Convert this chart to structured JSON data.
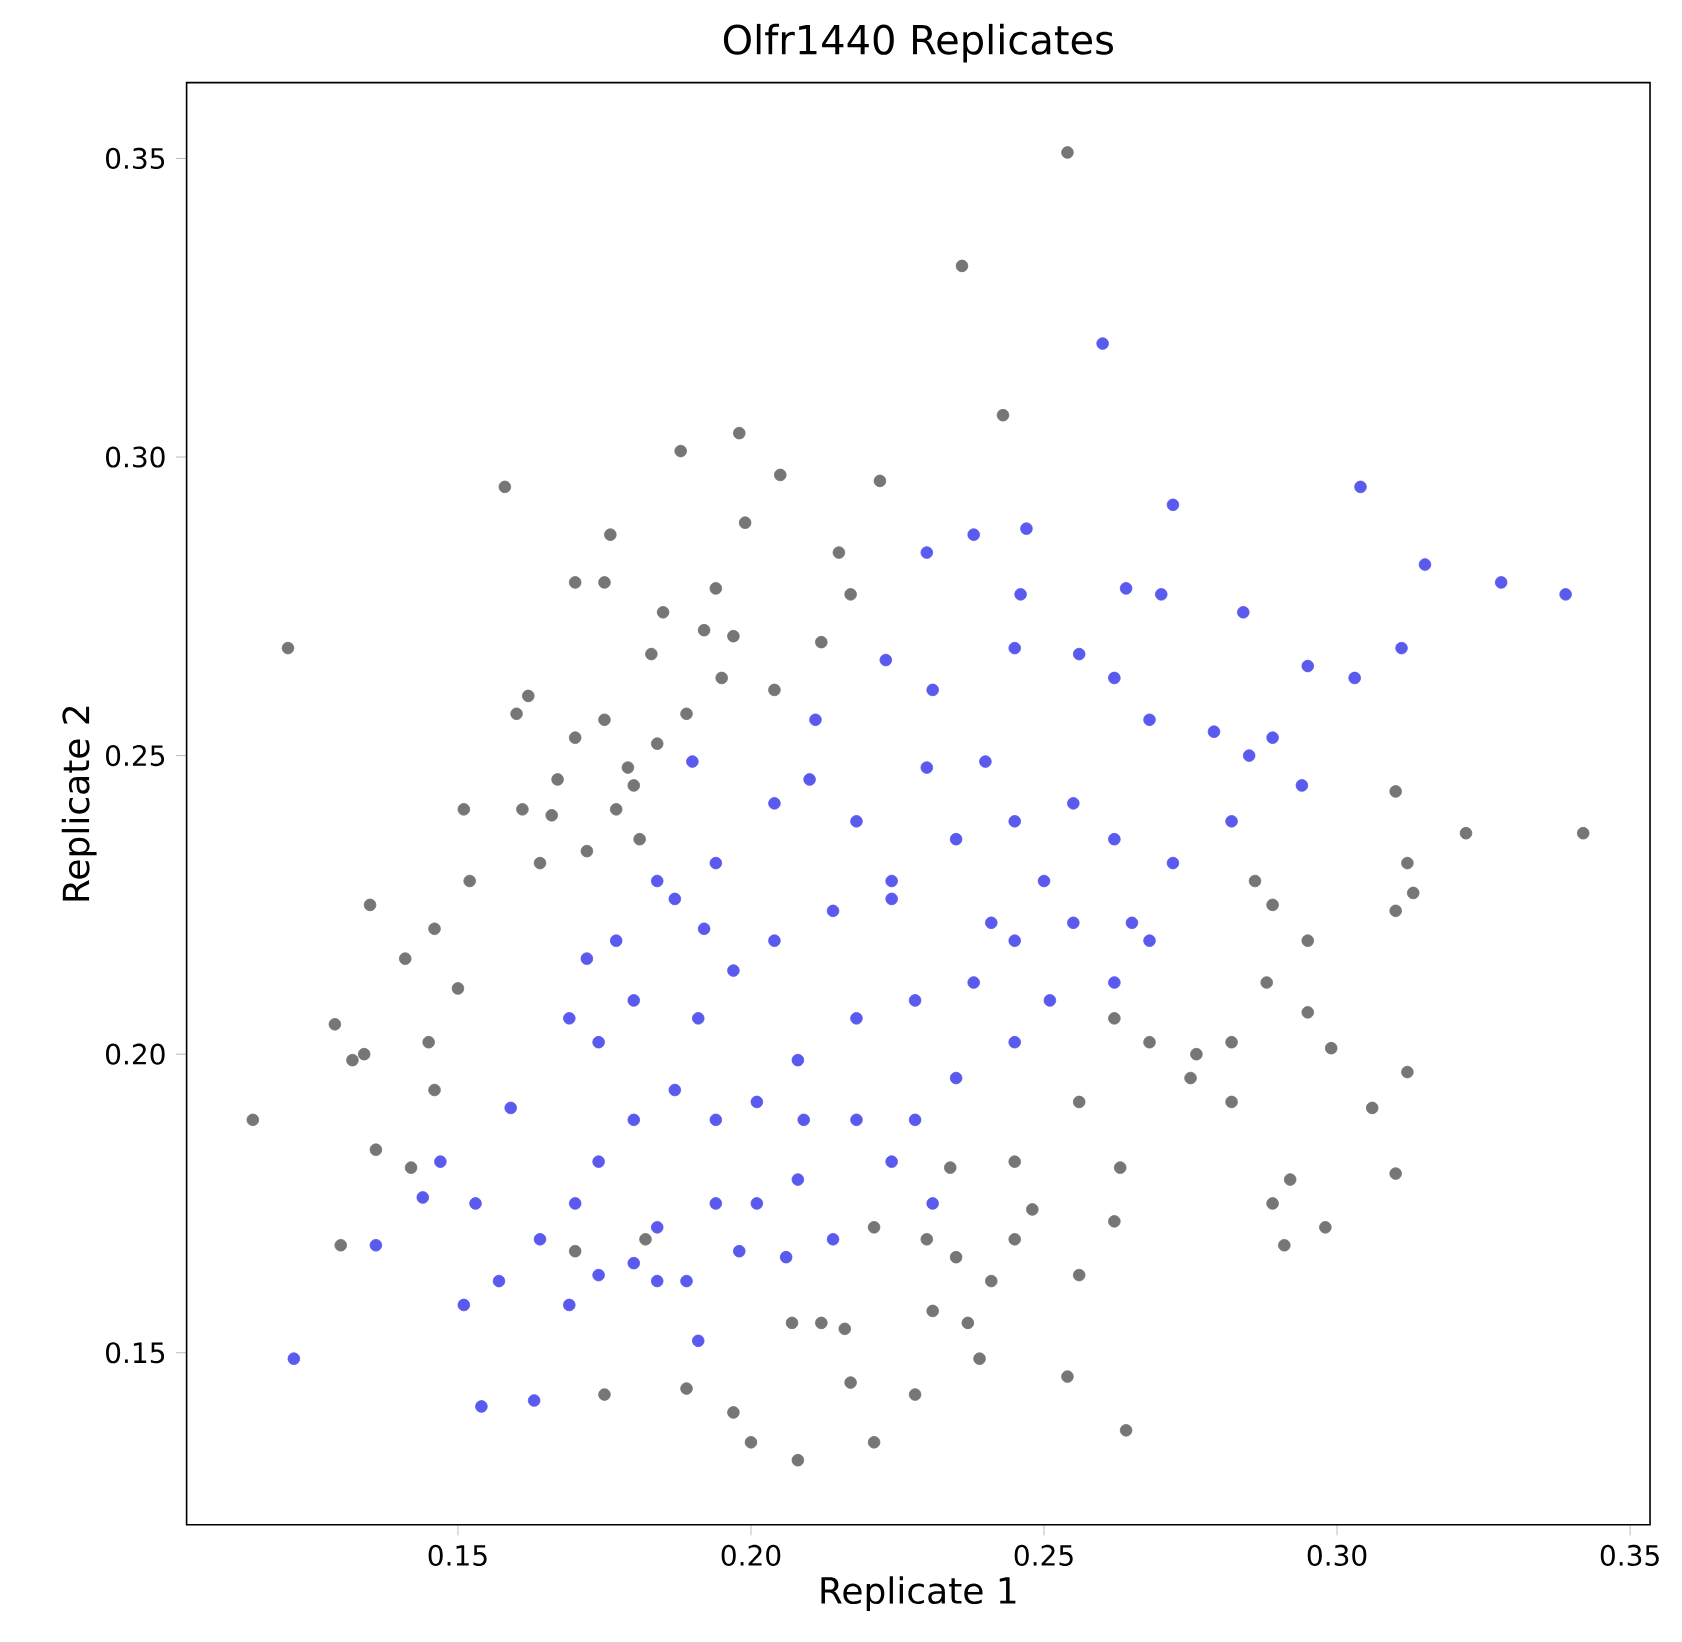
{
  "chart_data": {
    "type": "scatter",
    "title": "Olfr1440 Replicates",
    "xlabel": "Replicate 1",
    "ylabel": "Replicate 2",
    "xlim": [
      0.1037,
      0.3534
    ],
    "ylim": [
      0.1212,
      0.3627
    ],
    "xticks": [
      0.15,
      {
        "value": 0.2,
        "label": "0.20"
      },
      0.25,
      {
        "value": 0.3,
        "label": "0.30"
      },
      0.35
    ],
    "yticks": [
      0.15,
      {
        "value": 0.2,
        "label": "0.20"
      },
      0.25,
      {
        "value": 0.3,
        "label": "0.30"
      },
      0.35
    ],
    "marker": "circle",
    "series": [
      {
        "color": "#767676",
        "x": [
          0.254,
          0.236,
          0.243,
          0.198,
          0.188,
          0.205,
          0.222,
          0.158,
          0.199,
          0.176,
          0.17,
          0.175,
          0.215,
          0.194,
          0.217,
          0.212,
          0.197,
          0.121,
          0.183,
          0.162,
          0.16,
          0.17,
          0.175,
          0.167,
          0.161,
          0.151,
          0.164,
          0.152,
          0.135,
          0.146,
          0.141,
          0.129,
          0.15,
          0.145,
          0.134,
          0.146,
          0.132,
          0.136,
          0.142,
          0.13,
          0.115,
          0.17,
          0.182,
          0.175,
          0.189,
          0.197,
          0.208,
          0.2,
          0.217,
          0.221,
          0.228,
          0.239,
          0.241,
          0.23,
          0.234,
          0.245,
          0.248,
          0.256,
          0.264,
          0.254,
          0.262,
          0.263,
          0.256,
          0.275,
          0.282,
          0.268,
          0.282,
          0.286,
          0.288,
          0.295,
          0.295,
          0.299,
          0.292,
          0.298,
          0.291,
          0.31,
          0.312,
          0.306,
          0.31,
          0.312,
          0.322,
          0.313,
          0.342,
          0.31,
          0.289,
          0.276,
          0.262,
          0.289,
          0.192,
          0.195,
          0.204,
          0.189,
          0.184,
          0.179,
          0.18,
          0.177,
          0.172,
          0.181,
          0.166,
          0.185,
          0.221,
          0.235,
          0.237,
          0.245,
          0.231,
          0.212,
          0.207,
          0.216
        ],
        "values": [
          0.351,
          0.332,
          0.307,
          0.304,
          0.301,
          0.297,
          0.296,
          0.295,
          0.289,
          0.287,
          0.279,
          0.279,
          0.284,
          0.278,
          0.277,
          0.269,
          0.27,
          0.268,
          0.267,
          0.26,
          0.257,
          0.253,
          0.256,
          0.246,
          0.241,
          0.241,
          0.232,
          0.229,
          0.225,
          0.221,
          0.216,
          0.205,
          0.211,
          0.202,
          0.2,
          0.194,
          0.199,
          0.184,
          0.181,
          0.168,
          0.189,
          0.167,
          0.169,
          0.143,
          0.144,
          0.14,
          0.132,
          0.135,
          0.145,
          0.135,
          0.143,
          0.149,
          0.162,
          0.169,
          0.181,
          0.182,
          0.174,
          0.163,
          0.137,
          0.146,
          0.172,
          0.181,
          0.192,
          0.196,
          0.192,
          0.202,
          0.202,
          0.229,
          0.212,
          0.219,
          0.207,
          0.201,
          0.179,
          0.171,
          0.168,
          0.18,
          0.197,
          0.191,
          0.224,
          0.232,
          0.237,
          0.227,
          0.237,
          0.244,
          0.225,
          0.2,
          0.206,
          0.175,
          0.271,
          0.263,
          0.261,
          0.257,
          0.252,
          0.248,
          0.245,
          0.241,
          0.234,
          0.236,
          0.24,
          0.274,
          0.171,
          0.166,
          0.155,
          0.169,
          0.157,
          0.155,
          0.155,
          0.154
        ]
      },
      {
        "color": "#5a5aee",
        "x": [
          0.26,
          0.304,
          0.272,
          0.315,
          0.328,
          0.339,
          0.311,
          0.295,
          0.27,
          0.247,
          0.238,
          0.23,
          0.264,
          0.284,
          0.303,
          0.279,
          0.285,
          0.289,
          0.294,
          0.246,
          0.245,
          0.256,
          0.262,
          0.268,
          0.231,
          0.223,
          0.211,
          0.204,
          0.19,
          0.194,
          0.187,
          0.177,
          0.172,
          0.169,
          0.174,
          0.18,
          0.191,
          0.197,
          0.204,
          0.214,
          0.224,
          0.235,
          0.245,
          0.255,
          0.262,
          0.272,
          0.282,
          0.268,
          0.255,
          0.245,
          0.238,
          0.228,
          0.218,
          0.208,
          0.201,
          0.194,
          0.187,
          0.18,
          0.174,
          0.17,
          0.164,
          0.157,
          0.151,
          0.147,
          0.144,
          0.153,
          0.159,
          0.169,
          0.174,
          0.18,
          0.184,
          0.189,
          0.194,
          0.201,
          0.208,
          0.218,
          0.228,
          0.235,
          0.245,
          0.251,
          0.262,
          0.265,
          0.231,
          0.224,
          0.214,
          0.206,
          0.191,
          0.184,
          0.122,
          0.154,
          0.163,
          0.136,
          0.198,
          0.209,
          0.241,
          0.25,
          0.224,
          0.218,
          0.21,
          0.23,
          0.24,
          0.192,
          0.184
        ],
        "values": [
          0.319,
          0.295,
          0.292,
          0.282,
          0.279,
          0.277,
          0.268,
          0.265,
          0.277,
          0.288,
          0.287,
          0.284,
          0.278,
          0.274,
          0.263,
          0.254,
          0.25,
          0.253,
          0.245,
          0.277,
          0.268,
          0.267,
          0.263,
          0.256,
          0.261,
          0.266,
          0.256,
          0.242,
          0.249,
          0.232,
          0.226,
          0.219,
          0.216,
          0.206,
          0.202,
          0.209,
          0.206,
          0.214,
          0.219,
          0.224,
          0.229,
          0.236,
          0.239,
          0.242,
          0.236,
          0.232,
          0.239,
          0.219,
          0.222,
          0.219,
          0.212,
          0.209,
          0.206,
          0.199,
          0.192,
          0.189,
          0.194,
          0.189,
          0.182,
          0.175,
          0.169,
          0.162,
          0.158,
          0.182,
          0.176,
          0.175,
          0.191,
          0.158,
          0.163,
          0.165,
          0.171,
          0.162,
          0.175,
          0.175,
          0.179,
          0.189,
          0.189,
          0.196,
          0.202,
          0.209,
          0.212,
          0.222,
          0.175,
          0.182,
          0.169,
          0.166,
          0.152,
          0.162,
          0.149,
          0.141,
          0.142,
          0.168,
          0.167,
          0.189,
          0.222,
          0.229,
          0.226,
          0.239,
          0.246,
          0.248,
          0.249,
          0.221,
          0.229
        ]
      }
    ]
  }
}
